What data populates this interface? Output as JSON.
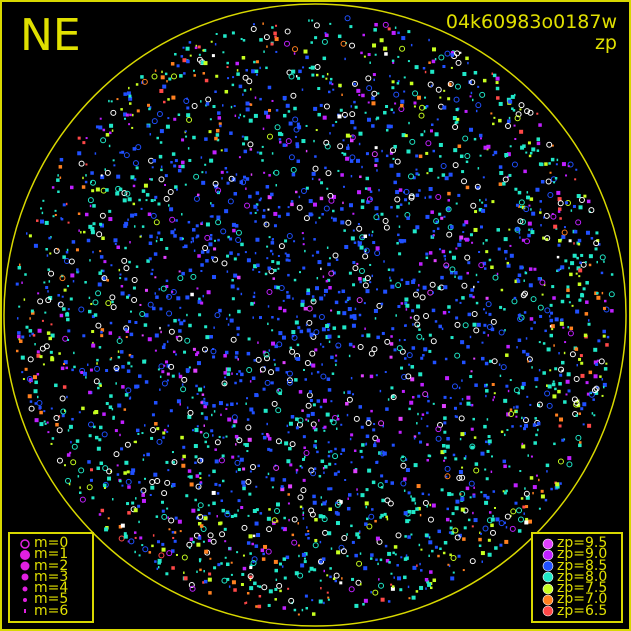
{
  "header": {
    "direction": "NE",
    "frame_id": "04k60983o0187w",
    "mode": "zp"
  },
  "colors": {
    "frame": "#d8d800",
    "text": "#e0e000",
    "background": "#000000"
  },
  "chart_data": {
    "type": "scatter",
    "title": "04k60983o0187w",
    "subtitle": "zp",
    "projection": "all-sky circle",
    "size_legend": [
      {
        "label": "m=0",
        "symbol": "open-circle"
      },
      {
        "label": "m=1"
      },
      {
        "label": "m=2"
      },
      {
        "label": "m=3"
      },
      {
        "label": "m=4"
      },
      {
        "label": "m=5"
      },
      {
        "label": "m=6"
      }
    ],
    "color_legend": [
      {
        "label": "zp=9.5",
        "color": "#e040ff"
      },
      {
        "label": "zp=9.0",
        "color": "#c020ff"
      },
      {
        "label": "zp=8.5",
        "color": "#2050ff"
      },
      {
        "label": "zp=8.0",
        "color": "#20e8c8"
      },
      {
        "label": "zp=7.5",
        "color": "#c8ff20"
      },
      {
        "label": "zp=7.0",
        "color": "#ff8020"
      },
      {
        "label": "zp=6.5",
        "color": "#ff4848"
      }
    ]
  }
}
